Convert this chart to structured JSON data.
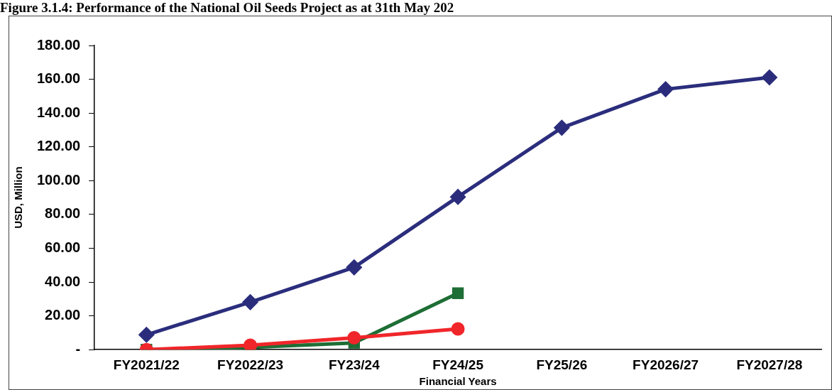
{
  "chart_data": {
    "type": "line",
    "title": "Figure 3.1.4: Performance of the National Oil Seeds Project as at 31th May 202",
    "xlabel": "Financial Years",
    "ylabel": "USD, Million",
    "categories": [
      "FY2021/22",
      "FY2022/23",
      "FY23/24",
      "FY24/25",
      "FY25/26",
      "FY2026/27",
      "FY2027/28"
    ],
    "series": [
      {
        "color": "#2b2d7c",
        "marker": "diamond",
        "values": [
          8.8,
          28.1,
          48.7,
          90.4,
          131.3,
          154.1,
          161.1
        ]
      },
      {
        "color": "#1e6e35",
        "marker": "square",
        "values": [
          0,
          1.3,
          4.0,
          33.4,
          null,
          null,
          null
        ]
      },
      {
        "color": "#f0262a",
        "marker": "circle",
        "values": [
          0,
          2.6,
          7.0,
          12.3,
          null,
          null,
          null
        ]
      }
    ],
    "ylim": [
      0,
      180
    ],
    "yticks": [
      {
        "value": 0,
        "label": "-"
      },
      {
        "value": 20,
        "label": "20.00"
      },
      {
        "value": 40,
        "label": "40.00"
      },
      {
        "value": 60,
        "label": "60.00"
      },
      {
        "value": 80,
        "label": "80.00"
      },
      {
        "value": 100,
        "label": "100.00"
      },
      {
        "value": 120,
        "label": "120.00"
      },
      {
        "value": 140,
        "label": "140.00"
      },
      {
        "value": 160,
        "label": "160.00"
      },
      {
        "value": 180,
        "label": "180.00"
      }
    ],
    "grid": false,
    "legend": false
  }
}
